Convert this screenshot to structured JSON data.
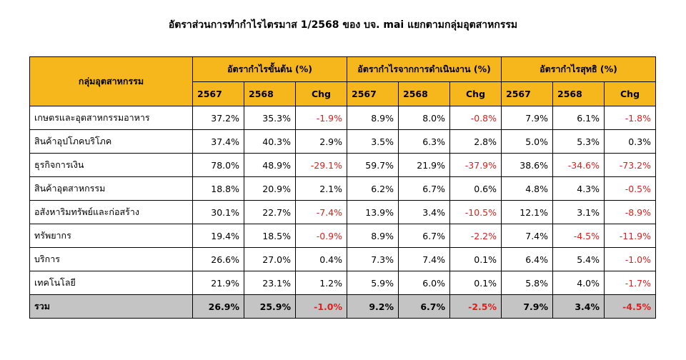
{
  "title": "อัตราส่วนการทำกำไรไตรมาส 1/2568 ของ บจ. mai แยกตามกลุ่มอุตสาหกรรม",
  "table": {
    "industry_header": "กลุ่มอุตสาหกรรม",
    "groups": [
      {
        "label": "อัตรากำไรขั้นต้น (%)",
        "cols": [
          "2567",
          "2568",
          "Chg"
        ]
      },
      {
        "label": "อัตรากำไรจากการดำเนินงาน (%)",
        "cols": [
          "2567",
          "2568",
          "Chg"
        ]
      },
      {
        "label": "อัตรากำไรสุทธิ (%)",
        "cols": [
          "2567",
          "2568",
          "Chg"
        ]
      }
    ],
    "rows": [
      {
        "name": "เกษตรและอุตสาหกรรมอาหาร",
        "values": [
          "37.2%",
          "35.3%",
          "-1.9%",
          "8.9%",
          "8.0%",
          "-0.8%",
          "7.9%",
          "6.1%",
          "-1.8%"
        ]
      },
      {
        "name": "สินค้าอุปโภคบริโภค",
        "values": [
          "37.4%",
          "40.3%",
          "2.9%",
          "3.5%",
          "6.3%",
          "2.8%",
          "5.0%",
          "5.3%",
          "0.3%"
        ]
      },
      {
        "name": "ธุรกิจการเงิน",
        "values": [
          "78.0%",
          "48.9%",
          "-29.1%",
          "59.7%",
          "21.9%",
          "-37.9%",
          "38.6%",
          "-34.6%",
          "-73.2%"
        ]
      },
      {
        "name": "สินค้าอุตสาหกรรม",
        "values": [
          "18.8%",
          "20.9%",
          "2.1%",
          "6.2%",
          "6.7%",
          "0.6%",
          "4.8%",
          "4.3%",
          "-0.5%"
        ]
      },
      {
        "name": "อสังหาริมทรัพย์และก่อสร้าง",
        "values": [
          "30.1%",
          "22.7%",
          "-7.4%",
          "13.9%",
          "3.4%",
          "-10.5%",
          "12.1%",
          "3.1%",
          "-8.9%"
        ]
      },
      {
        "name": "ทรัพยากร",
        "values": [
          "19.4%",
          "18.5%",
          "-0.9%",
          "8.9%",
          "6.7%",
          "-2.2%",
          "7.4%",
          "-4.5%",
          "-11.9%"
        ]
      },
      {
        "name": "บริการ",
        "values": [
          "26.6%",
          "27.0%",
          "0.4%",
          "7.3%",
          "7.4%",
          "0.1%",
          "6.4%",
          "5.4%",
          "-1.0%"
        ]
      },
      {
        "name": "เทคโนโลยี",
        "values": [
          "21.9%",
          "23.1%",
          "1.2%",
          "5.9%",
          "6.0%",
          "0.1%",
          "5.8%",
          "4.0%",
          "-1.7%"
        ]
      }
    ],
    "total": {
      "name": "รวม",
      "values": [
        "26.9%",
        "25.9%",
        "-1.0%",
        "9.2%",
        "6.7%",
        "-2.5%",
        "7.9%",
        "3.4%",
        "-4.5%"
      ]
    }
  },
  "colors": {
    "header_bg": "#f6b71c",
    "total_bg": "#c4c4c4",
    "negative_text": "#e02020"
  }
}
